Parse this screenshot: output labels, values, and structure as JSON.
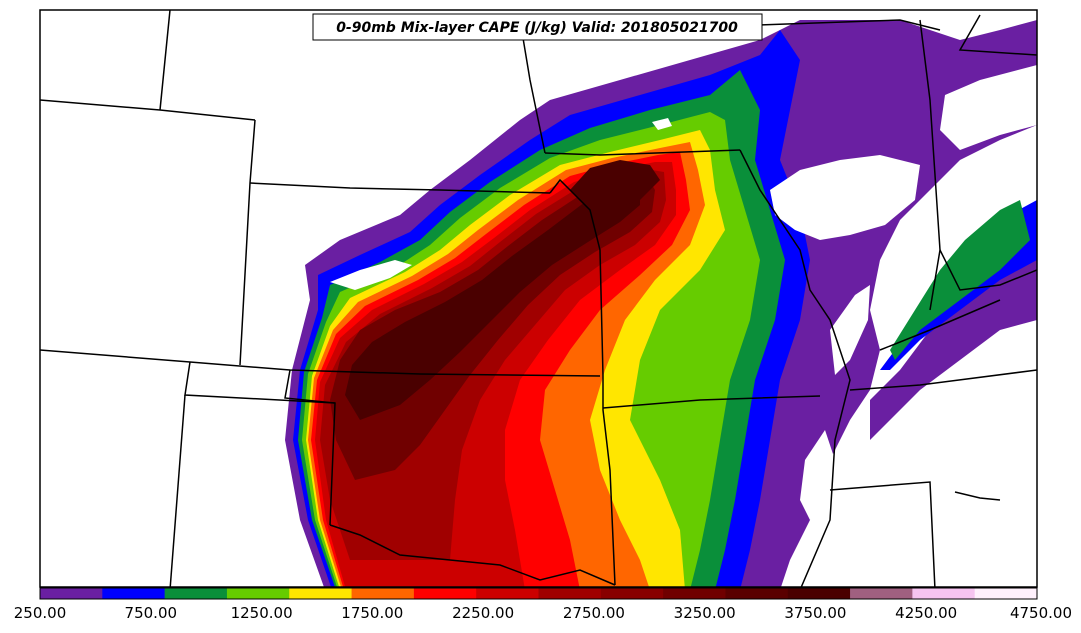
{
  "title": "0-90mb Mix-layer CAPE (J/kg) Valid: 201805021700",
  "colorbar": {
    "colors": [
      "#6a1fa2",
      "#0000ff",
      "#0a8f3a",
      "#66cc00",
      "#ffe600",
      "#ff6600",
      "#ff0000",
      "#cc0000",
      "#a00000",
      "#880000",
      "#700000",
      "#5a0000",
      "#4a0000",
      "#a06080",
      "#f6c4f0",
      "#fff0fc"
    ],
    "tick_labels": [
      "250.00",
      "750.00",
      "1250.00",
      "1750.00",
      "2250.00",
      "2750.00",
      "3250.00",
      "3750.00",
      "4250.00",
      "4750.00"
    ]
  },
  "palette": {
    "purple": "#6a1fa2",
    "blue": "#0000ff",
    "darkgreen": "#0a8f3a",
    "lightgreen": "#66cc00",
    "yellow": "#ffe600",
    "orange": "#ff6600",
    "red": "#ff0000",
    "red2": "#cc0000",
    "darkred": "#a00000",
    "maroon": "#700000",
    "darkest": "#4a0000"
  }
}
